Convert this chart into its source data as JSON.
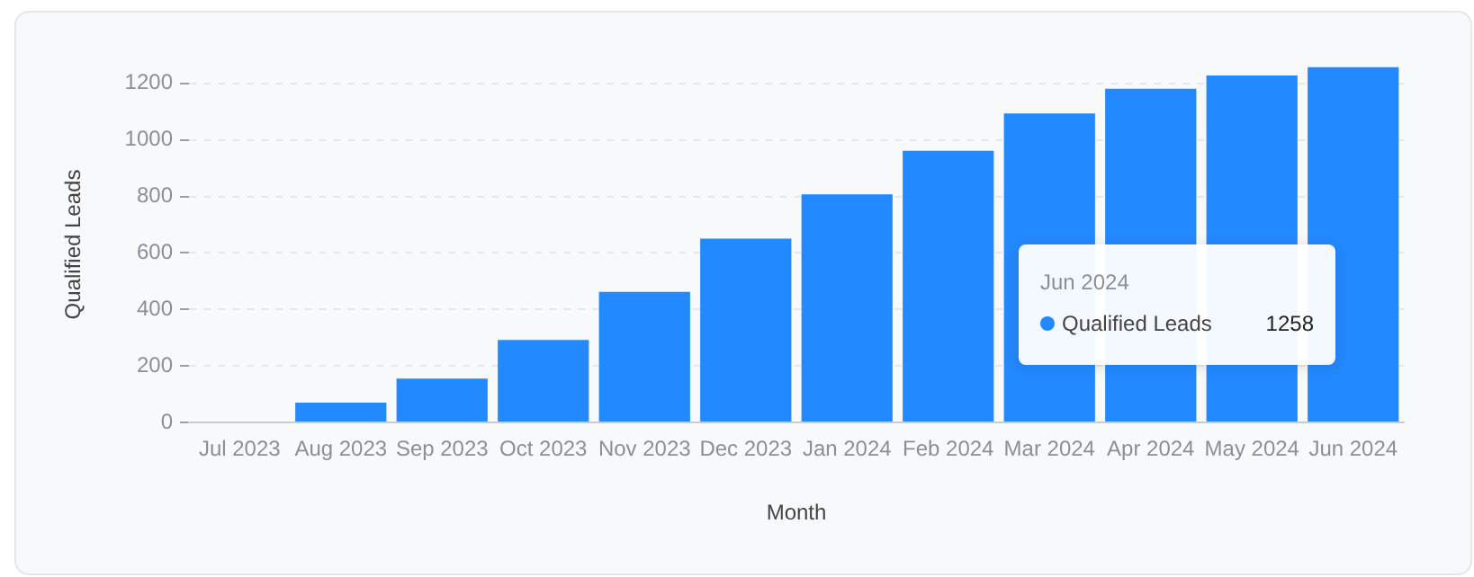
{
  "chart_data": {
    "type": "bar",
    "xlabel": "Month",
    "ylabel": "Qualified Leads",
    "categories": [
      "Jul 2023",
      "Aug 2023",
      "Sep 2023",
      "Oct 2023",
      "Nov 2023",
      "Dec 2023",
      "Jan 2024",
      "Feb 2024",
      "Mar 2024",
      "Apr 2024",
      "May 2024",
      "Jun 2024"
    ],
    "series": [
      {
        "name": "Qualified Leads",
        "color": "#2389ff",
        "values": [
          0,
          70,
          155,
          292,
          462,
          651,
          807,
          962,
          1094,
          1181,
          1228,
          1258
        ]
      }
    ],
    "ylim": [
      0,
      1260
    ],
    "yticks": [
      0,
      200,
      400,
      600,
      800,
      1000,
      1200
    ],
    "grid": "y",
    "legend": "right",
    "annotations": [
      "Jun 2024",
      "1258"
    ]
  }
}
